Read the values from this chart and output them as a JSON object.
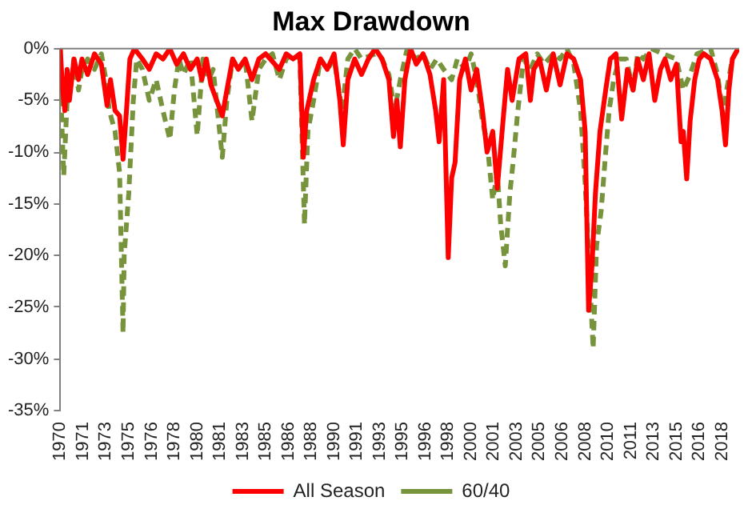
{
  "chart_data": {
    "type": "line",
    "title": "Max Drawdown",
    "xlim": [
      "1970-01",
      "2019-08"
    ],
    "xticks": [
      {
        "value": "1970-01",
        "label": "1970"
      },
      {
        "value": "1971-09",
        "label": "1971"
      },
      {
        "value": "1973-05",
        "label": "1973"
      },
      {
        "value": "1975-01",
        "label": "1975"
      },
      {
        "value": "1976-09",
        "label": "1976"
      },
      {
        "value": "1978-05",
        "label": "1978"
      },
      {
        "value": "1980-01",
        "label": "1980"
      },
      {
        "value": "1981-09",
        "label": "1981"
      },
      {
        "value": "1983-05",
        "label": "1983"
      },
      {
        "value": "1985-01",
        "label": "1985"
      },
      {
        "value": "1986-09",
        "label": "1986"
      },
      {
        "value": "1988-05",
        "label": "1988"
      },
      {
        "value": "1990-01",
        "label": "1990"
      },
      {
        "value": "1991-09",
        "label": "1991"
      },
      {
        "value": "1993-05",
        "label": "1993"
      },
      {
        "value": "1995-01",
        "label": "1995"
      },
      {
        "value": "1996-09",
        "label": "1996"
      },
      {
        "value": "1998-05",
        "label": "1998"
      },
      {
        "value": "2000-01",
        "label": "2000"
      },
      {
        "value": "2001-09",
        "label": "2001"
      },
      {
        "value": "2003-05",
        "label": "2003"
      },
      {
        "value": "2005-01",
        "label": "2005"
      },
      {
        "value": "2006-09",
        "label": "2006"
      },
      {
        "value": "2008-05",
        "label": "2008"
      },
      {
        "value": "2010-01",
        "label": "2010"
      },
      {
        "value": "2011-09",
        "label": "2011"
      },
      {
        "value": "2013-05",
        "label": "2013"
      },
      {
        "value": "2015-01",
        "label": "2015"
      },
      {
        "value": "2016-09",
        "label": "2016"
      },
      {
        "value": "2018-05",
        "label": "2018"
      }
    ],
    "ylim": [
      -35,
      0
    ],
    "yticks": [
      {
        "value": -35,
        "label": "-35%"
      },
      {
        "value": -30,
        "label": "-30%"
      },
      {
        "value": -25,
        "label": "-25%"
      },
      {
        "value": -20,
        "label": "-20%"
      },
      {
        "value": -15,
        "label": "-15%"
      },
      {
        "value": -10,
        "label": "-10%"
      },
      {
        "value": -5,
        "label": "-5%"
      },
      {
        "value": 0,
        "label": "0%"
      }
    ],
    "grid": false,
    "legend": "bottom",
    "marker": "none",
    "series": [
      {
        "name": "All Season",
        "color": "#ff0000",
        "line_style": "solid",
        "x": [
          "1970-01",
          "1970-03",
          "1970-05",
          "1970-07",
          "1970-09",
          "1971-01",
          "1971-05",
          "1971-08",
          "1972-01",
          "1972-07",
          "1973-01",
          "1973-06",
          "1973-09",
          "1974-01",
          "1974-05",
          "1974-08",
          "1974-11",
          "1975-02",
          "1975-06",
          "1976-01",
          "1976-07",
          "1977-01",
          "1977-07",
          "1978-01",
          "1978-07",
          "1979-01",
          "1979-07",
          "1980-01",
          "1980-05",
          "1980-09",
          "1981-01",
          "1981-06",
          "1981-11",
          "1982-03",
          "1982-08",
          "1983-01",
          "1983-07",
          "1984-01",
          "1984-07",
          "1985-01",
          "1986-01",
          "1986-07",
          "1987-01",
          "1987-07",
          "1987-10",
          "1988-01",
          "1988-07",
          "1989-01",
          "1989-07",
          "1990-01",
          "1990-06",
          "1990-09",
          "1991-01",
          "1991-07",
          "1992-01",
          "1992-07",
          "1993-01",
          "1993-07",
          "1994-01",
          "1994-05",
          "1994-08",
          "1994-11",
          "1995-03",
          "1995-08",
          "1996-01",
          "1996-07",
          "1997-01",
          "1997-06",
          "1997-09",
          "1998-01",
          "1998-05",
          "1998-08",
          "1998-11",
          "1999-03",
          "1999-08",
          "2000-01",
          "2000-06",
          "2000-11",
          "2001-03",
          "2001-08",
          "2001-12",
          "2002-05",
          "2002-09",
          "2003-01",
          "2003-07",
          "2004-01",
          "2004-05",
          "2004-08",
          "2005-01",
          "2005-07",
          "2006-01",
          "2006-07",
          "2007-01",
          "2007-07",
          "2008-01",
          "2008-05",
          "2008-08",
          "2008-11",
          "2009-02",
          "2009-06",
          "2009-11",
          "2010-03",
          "2010-08",
          "2011-01",
          "2011-06",
          "2011-11",
          "2012-03",
          "2012-08",
          "2013-01",
          "2013-06",
          "2013-11",
          "2014-03",
          "2014-08",
          "2015-01",
          "2015-05",
          "2015-07",
          "2015-10",
          "2016-01",
          "2016-05",
          "2016-09",
          "2017-01",
          "2017-07",
          "2018-01",
          "2018-05",
          "2018-08",
          "2018-11",
          "2019-02",
          "2019-07"
        ],
        "values": [
          0,
          -4,
          -6,
          -2,
          -5,
          -1,
          -3,
          -1,
          -2.5,
          -0.5,
          -1.5,
          -5.5,
          -3,
          -6,
          -6.5,
          -10.7,
          -6,
          -1,
          0,
          -1,
          -2,
          -0.5,
          -1,
          0,
          -1.5,
          -0.5,
          -2,
          -1,
          -3,
          -1,
          -3.5,
          -5,
          -6.5,
          -4,
          -1,
          -2,
          -1,
          -3,
          -1,
          -0.5,
          -2,
          -0.5,
          -1,
          -0.5,
          -10.5,
          -6,
          -3,
          -1,
          -2,
          -0.5,
          -5,
          -9.3,
          -3,
          -1,
          -2.5,
          -1,
          0,
          -1,
          -3,
          -8.5,
          -5,
          -9.5,
          -3,
          0,
          -1.5,
          -0.5,
          -2.5,
          -6,
          -9,
          -3,
          -20.2,
          -12.5,
          -11,
          -3,
          -1,
          -4,
          -2,
          -6,
          -10,
          -8,
          -13.5,
          -7,
          -2,
          -5,
          -1,
          -0.5,
          -5,
          -2,
          -1,
          -4,
          -0.5,
          -3.5,
          -0.5,
          -1,
          -3,
          -8,
          -25.3,
          -21,
          -14,
          -8,
          -4,
          -1,
          -0.5,
          -6.8,
          -2,
          -4,
          -1,
          -3,
          -0.5,
          -5,
          -2,
          -1,
          -3,
          -1.5,
          -9,
          -8,
          -12.6,
          -7,
          -3,
          -1,
          -0.5,
          -1,
          -3,
          -6,
          -9.3,
          -4,
          -1,
          0
        ]
      },
      {
        "name": "60/40",
        "color": "#77933c",
        "line_style": "dashed",
        "x": [
          "1970-01",
          "1970-02",
          "1970-04",
          "1970-07",
          "1970-11",
          "1971-01",
          "1971-05",
          "1971-08",
          "1972-01",
          "1972-07",
          "1973-01",
          "1973-05",
          "1973-08",
          "1974-01",
          "1974-05",
          "1974-08",
          "1974-09",
          "1975-01",
          "1975-05",
          "1975-08",
          "1976-01",
          "1976-07",
          "1977-01",
          "1977-07",
          "1978-01",
          "1978-05",
          "1978-09",
          "1979-01",
          "1979-07",
          "1980-01",
          "1980-06",
          "1980-11",
          "1981-03",
          "1981-11",
          "1982-03",
          "1982-08",
          "1983-01",
          "1983-07",
          "1984-01",
          "1984-07",
          "1985-01",
          "1985-07",
          "1986-01",
          "1986-07",
          "1987-01",
          "1987-07",
          "1987-11",
          "1988-02",
          "1988-07",
          "1989-01",
          "1989-07",
          "1990-01",
          "1990-08",
          "1991-01",
          "1991-07",
          "1992-01",
          "1993-01",
          "1993-07",
          "1994-01",
          "1994-06",
          "1994-11",
          "1995-05",
          "1996-01",
          "1996-07",
          "1997-01",
          "1997-07",
          "1998-01",
          "1998-08",
          "1999-01",
          "1999-08",
          "2000-01",
          "2000-06",
          "2000-11",
          "2001-03",
          "2001-08",
          "2001-12",
          "2002-03",
          "2002-07",
          "2002-11",
          "2003-02",
          "2003-06",
          "2003-11",
          "2004-05",
          "2004-11",
          "2005-05",
          "2006-01",
          "2006-07",
          "2007-01",
          "2007-07",
          "2008-01",
          "2008-05",
          "2008-08",
          "2008-12",
          "2009-03",
          "2009-07",
          "2009-11",
          "2010-02",
          "2010-06",
          "2010-11",
          "2011-05",
          "2011-11",
          "2012-03",
          "2012-08",
          "2013-03",
          "2014-01",
          "2015-01",
          "2015-07",
          "2016-01",
          "2016-07",
          "2017-07",
          "2018-01",
          "2018-06",
          "2018-09",
          "2019-02",
          "2019-07"
        ],
        "values": [
          0,
          -6,
          -12.3,
          -5,
          -3,
          -1,
          -4,
          -2,
          -1,
          -2,
          -0.5,
          -3,
          -6,
          -8,
          -12,
          -27.5,
          -20,
          -14,
          -5,
          -1,
          -2,
          -5,
          -3,
          -6,
          -8.8,
          -4,
          -1,
          -2.5,
          -1,
          -8.4,
          -1,
          -3,
          -2,
          -10.5,
          -5,
          -1,
          -2,
          -1,
          -7,
          -2,
          -1,
          -0.5,
          -3,
          -1,
          -0.5,
          -1,
          -17,
          -8,
          -5,
          -1,
          -2,
          -1,
          -6,
          -1,
          0,
          -1,
          -0.5,
          -1,
          -2.5,
          -6,
          -3,
          0,
          -1,
          -0.5,
          -2,
          -1,
          -2,
          -3,
          -1,
          -2,
          -0.5,
          -3,
          -7,
          -9,
          -14.6,
          -12,
          -17,
          -21,
          -14,
          -10.8,
          -6,
          -1,
          -2,
          -0.5,
          -1.5,
          -0.5,
          -1,
          0,
          -1.5,
          -6,
          -13,
          -20,
          -29,
          -19,
          -15.7,
          -10,
          -6,
          -3,
          -1,
          -1,
          -4,
          -0.5,
          -1,
          0,
          -0.5,
          -1,
          -4,
          -2.5,
          -0.5,
          0,
          -2.5,
          -6.5,
          -4,
          -1,
          0
        ]
      }
    ]
  }
}
